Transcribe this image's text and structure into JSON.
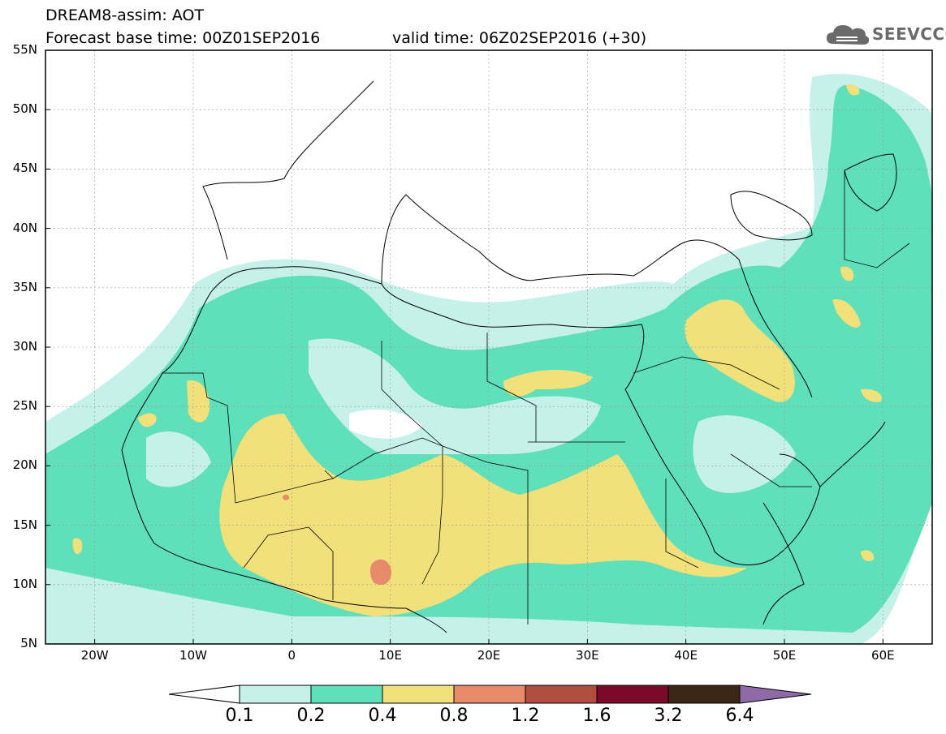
{
  "header": {
    "title": "DREAM8-assim: AOT",
    "base_time": "Forecast base time: 00Z01SEP2016",
    "valid_time": "valid time: 06Z02SEP2016 (+30)",
    "logo_text": "SEEVCCC"
  },
  "map": {
    "region": "North Africa, Mediterranean, Middle East",
    "lon_range": [
      -25,
      65
    ],
    "lat_range": [
      5,
      55
    ],
    "lat_labels": [
      "55N",
      "50N",
      "45N",
      "40N",
      "35N",
      "30N",
      "25N",
      "20N",
      "15N",
      "10N",
      "5N"
    ],
    "lon_labels": [
      "20W",
      "10W",
      "0",
      "10E",
      "20E",
      "30E",
      "40E",
      "50E",
      "60E"
    ],
    "background": "#ffffff",
    "boundary_color": "#000000"
  },
  "legend": {
    "labels": [
      "0.1",
      "0.2",
      "0.4",
      "0.8",
      "1.2",
      "1.6",
      "3.2",
      "6.4"
    ],
    "colors": [
      "#c6f0ea",
      "#5fdfba",
      "#f2e07a",
      "#e78a6a",
      "#b04d3e",
      "#7a0a2a",
      "#3a2614",
      "#8e6aa8"
    ]
  }
}
